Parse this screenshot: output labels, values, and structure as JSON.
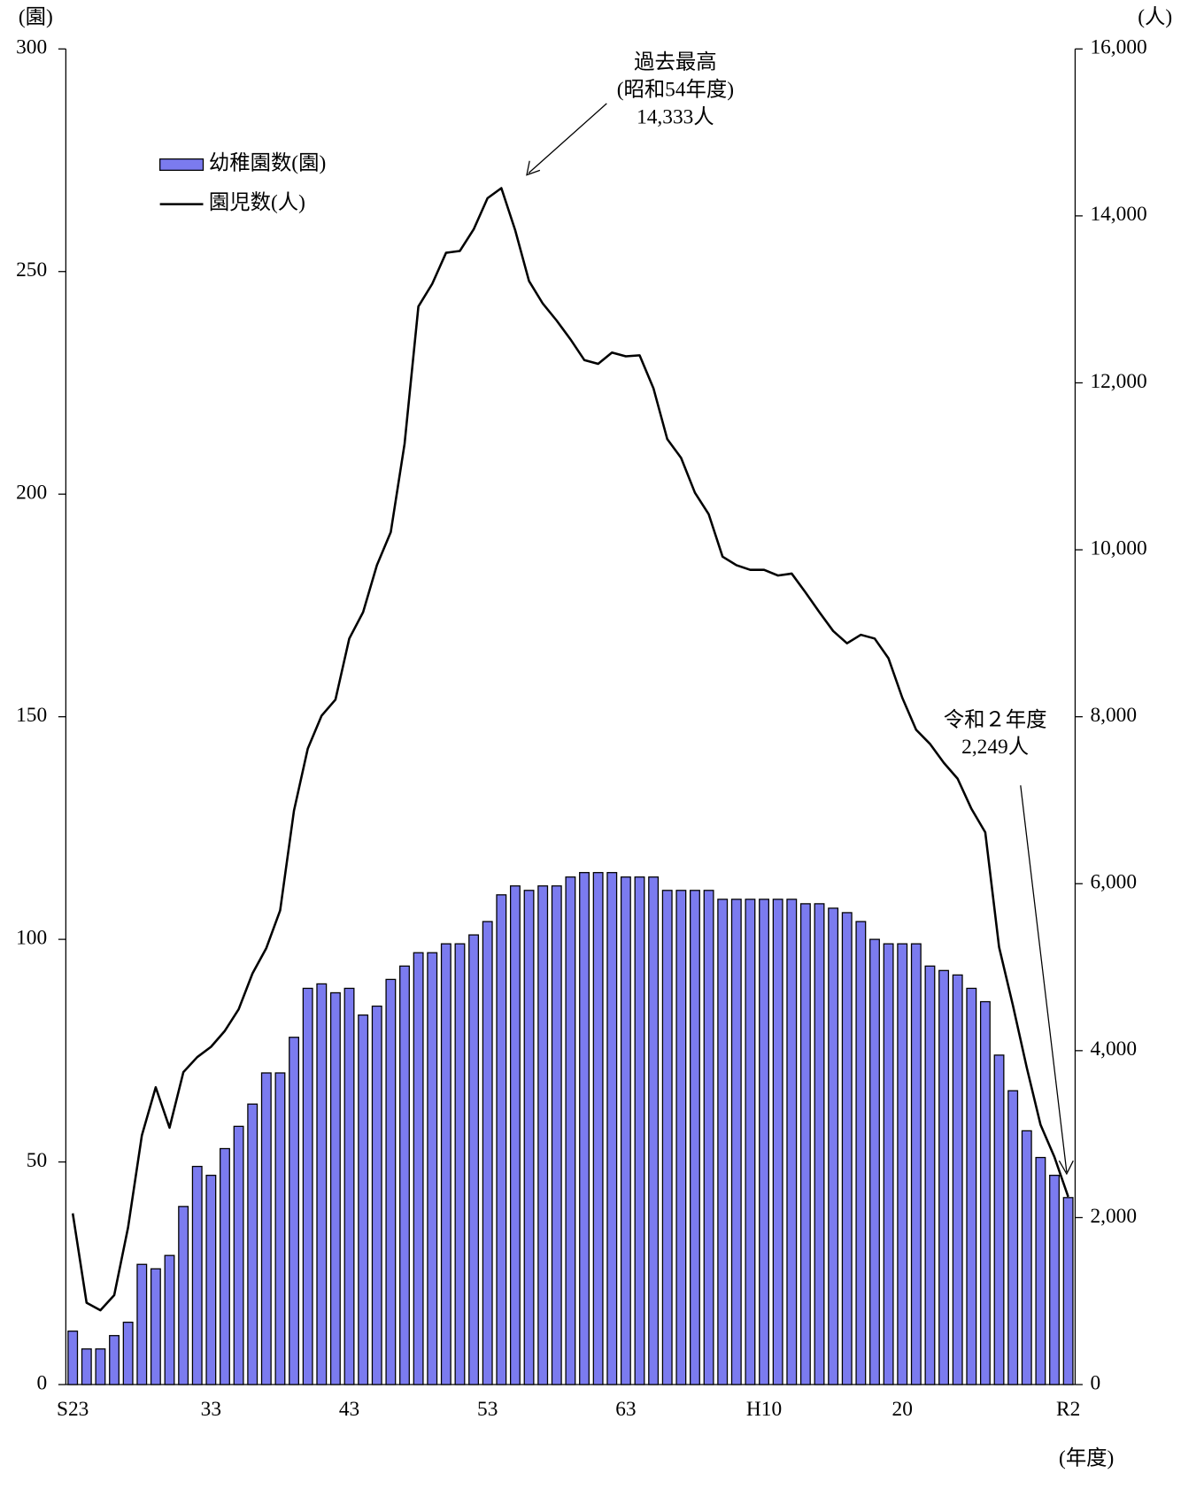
{
  "chart_data": {
    "type": "bar",
    "y_label": "(園)",
    "y2_label": "(人)",
    "x_label": "(年度)",
    "categories": [
      "S23",
      null,
      null,
      null,
      null,
      null,
      null,
      null,
      null,
      null,
      "33",
      null,
      null,
      null,
      null,
      null,
      null,
      null,
      null,
      null,
      "43",
      null,
      null,
      null,
      null,
      null,
      null,
      null,
      null,
      null,
      "53",
      null,
      null,
      null,
      null,
      null,
      null,
      null,
      null,
      null,
      "63",
      null,
      null,
      null,
      null,
      null,
      null,
      null,
      null,
      null,
      "H10",
      null,
      null,
      null,
      null,
      null,
      null,
      null,
      null,
      null,
      "20",
      null,
      null,
      null,
      null,
      null,
      null,
      null,
      null,
      null,
      null,
      null,
      "R2"
    ],
    "series": [
      {
        "name": "幼稚園数(園)",
        "type": "bar",
        "color": "#7b7bef",
        "values": [
          12,
          8,
          8,
          11,
          14,
          27,
          26,
          29,
          40,
          49,
          47,
          53,
          58,
          63,
          70,
          70,
          78,
          89,
          90,
          88,
          89,
          83,
          85,
          91,
          94,
          97,
          97,
          99,
          99,
          101,
          104,
          110,
          112,
          111,
          112,
          112,
          114,
          115,
          115,
          115,
          114,
          114,
          114,
          111,
          111,
          111,
          111,
          109,
          109,
          109,
          109,
          109,
          109,
          108,
          108,
          107,
          106,
          104,
          100,
          99,
          99,
          99,
          94,
          93,
          92,
          89,
          86,
          74,
          66,
          57,
          51,
          47,
          42
        ]
      },
      {
        "name": "園児数(人)",
        "type": "line",
        "color": "#000000",
        "axis": "y2",
        "values": [
          2051,
          980,
          890,
          1071,
          1882,
          2986,
          3561,
          3077,
          3742,
          3922,
          4046,
          4237,
          4496,
          4925,
          5229,
          5680,
          6875,
          7619,
          8013,
          8205,
          8937,
          9253,
          9816,
          10211,
          11270,
          12915,
          13186,
          13558,
          13580,
          13840,
          14212,
          14333,
          13829,
          13220,
          12949,
          12746,
          12521,
          12273,
          12228,
          12363,
          12318,
          12330,
          11935,
          11326,
          11101,
          10684,
          10425,
          9918,
          9816,
          9760,
          9760,
          9692,
          9715,
          9489,
          9253,
          9027,
          8880,
          8982,
          8937,
          8700,
          8227,
          7844,
          7675,
          7449,
          7258,
          6897,
          6615,
          5240,
          4542,
          3798,
          3111,
          2727,
          2249
        ]
      }
    ],
    "ylim": [
      0,
      300
    ],
    "yticks": [
      0,
      50,
      100,
      150,
      200,
      250,
      300
    ],
    "y2lim": [
      0,
      16000
    ],
    "y2ticks": [
      0,
      {
        "value": 2000,
        "label": "2,000"
      },
      {
        "value": 4000,
        "label": "4,000"
      },
      {
        "value": 6000,
        "label": "6,000"
      },
      {
        "value": 8000,
        "label": "8,000"
      },
      {
        "value": 10000,
        "label": "10,000"
      },
      {
        "value": 12000,
        "label": "12,000"
      },
      {
        "value": 14000,
        "label": "14,000"
      },
      {
        "value": 16000,
        "label": "16,000"
      }
    ],
    "legend": "upper left",
    "annotations": [
      {
        "lines": [
          "過去最高",
          "(昭和54年度)",
          "14,333人"
        ]
      },
      {
        "lines": [
          "令和２年度",
          "2,249人"
        ]
      }
    ]
  }
}
